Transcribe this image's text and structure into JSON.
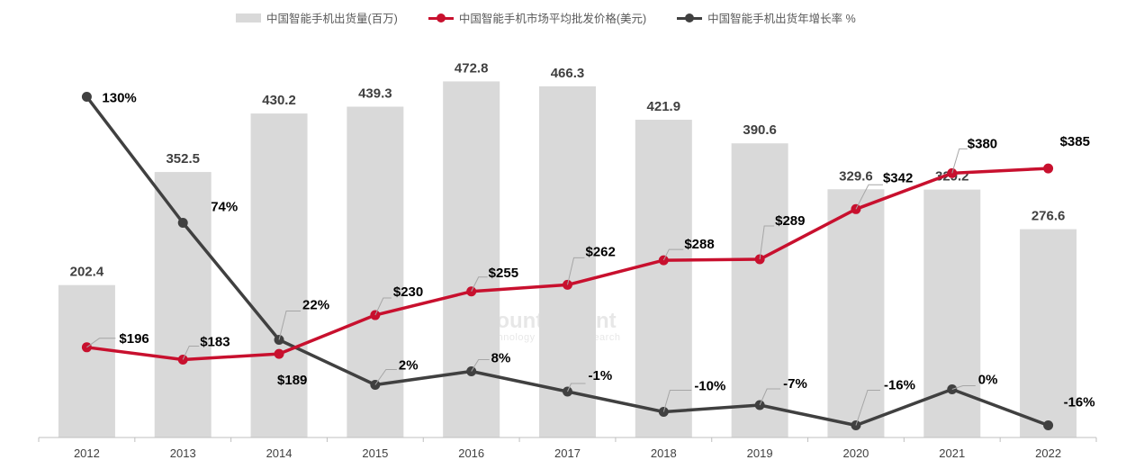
{
  "legend": {
    "shipments": "中国智能手机出货量(百万)",
    "price": "中国智能手机市场平均批发价格(美元)",
    "growth": "中国智能手机出货年增长率 %"
  },
  "watermark": {
    "name": "Counterpoint",
    "sub": "Technology Market Research"
  },
  "colors": {
    "bar": "#d9d9d9",
    "price_line": "#c8102e",
    "growth_line": "#404040",
    "leader": "#a6a6a6",
    "axis": "#bfbfbf"
  },
  "chart_data": {
    "type": "bar",
    "categories": [
      "2012",
      "2013",
      "2014",
      "2015",
      "2016",
      "2017",
      "2018",
      "2019",
      "2020",
      "2021",
      "2022"
    ],
    "series": [
      {
        "name": "中国智能手机出货量(百万)",
        "type": "bar",
        "values": [
          202.4,
          352.5,
          430.2,
          439.3,
          472.8,
          466.3,
          421.9,
          390.6,
          329.6,
          329.2,
          276.6
        ],
        "labels": [
          "202.4",
          "352.5",
          "430.2",
          "439.3",
          "472.8",
          "466.3",
          "421.9",
          "390.6",
          "329.6",
          "329.2",
          "276.6"
        ]
      },
      {
        "name": "中国智能手机市场平均批发价格(美元)",
        "type": "line",
        "values": [
          196,
          183,
          189,
          230,
          255,
          262,
          288,
          289,
          342,
          380,
          385
        ],
        "labels": [
          "$196",
          "$183",
          "$189",
          "$230",
          "$255",
          "$262",
          "$288",
          "$289",
          "$342",
          "$380",
          "$385"
        ]
      },
      {
        "name": "中国智能手机出货年增长率 %",
        "type": "line",
        "values": [
          130,
          74,
          22,
          2,
          8,
          -1,
          -10,
          -7,
          -16,
          0,
          -16
        ],
        "labels": [
          "130%",
          "74%",
          "22%",
          "2%",
          "8%",
          "-1%",
          "-10%",
          "-7%",
          "-16%",
          "0%",
          "-16%"
        ]
      }
    ],
    "grid": false,
    "legend_position": "top"
  }
}
